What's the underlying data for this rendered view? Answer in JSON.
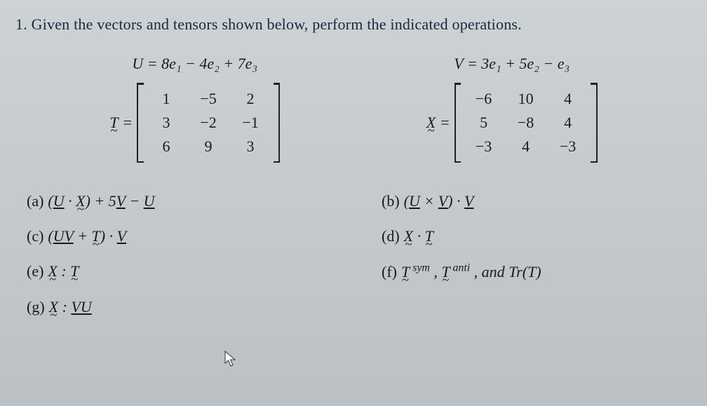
{
  "question": "1. Given the vectors and tensors shown below, perform the indicated operations.",
  "U": {
    "lhs": "U",
    "rhs": "8e₁ − 4e₂ + 7e₃"
  },
  "V": {
    "lhs": "V",
    "rhs": "3e₁ + 5e₂ − e₃"
  },
  "T": {
    "lhs": "T",
    "rows": [
      [
        "1",
        "−5",
        "2"
      ],
      [
        "3",
        "−2",
        "−1"
      ],
      [
        "6",
        "9",
        "3"
      ]
    ]
  },
  "X": {
    "lhs": "X",
    "rows": [
      [
        "−6",
        "10",
        "4"
      ],
      [
        "5",
        "−8",
        "4"
      ],
      [
        "−3",
        "4",
        "−3"
      ]
    ]
  },
  "parts": {
    "a": {
      "label": "(a)",
      "expr_html": "(<span class='under'>U</span> · <span class='tilde'>X</span>) + 5<span class='under'>V</span> − <span class='under'>U</span>"
    },
    "b": {
      "label": "(b)",
      "expr_html": "(<span class='under'>U</span> × <span class='under'>V</span>) · <span class='under'>V</span>"
    },
    "c": {
      "label": "(c)",
      "expr_html": "(<span class='under'>U</span><span class='under'>V</span> + <span class='tilde'>T</span>) · <span class='under'>V</span>"
    },
    "d": {
      "label": "(d)",
      "expr_html": "<span class='tilde'>X</span> · <span class='tilde'>T</span>"
    },
    "e": {
      "label": "(e)",
      "expr_html": "<span class='tilde'>X</span> : <span class='tilde'>T</span>"
    },
    "f": {
      "label": "(f)",
      "expr_html": "<span class='tilde'>T</span><span class='sup'> sym</span> ,  <span class='tilde'>T</span><span class='sup'> anti</span> ,  and  <i>Tr</i>(T)"
    },
    "g": {
      "label": "(g)",
      "expr_html": "<span class='tilde'>X</span> : <span class='under'>V</span><span class='under'>U</span>"
    }
  },
  "colors": {
    "bg": "#c8cdd0",
    "text": "#1a1a1a",
    "heading": "#1d2740"
  }
}
